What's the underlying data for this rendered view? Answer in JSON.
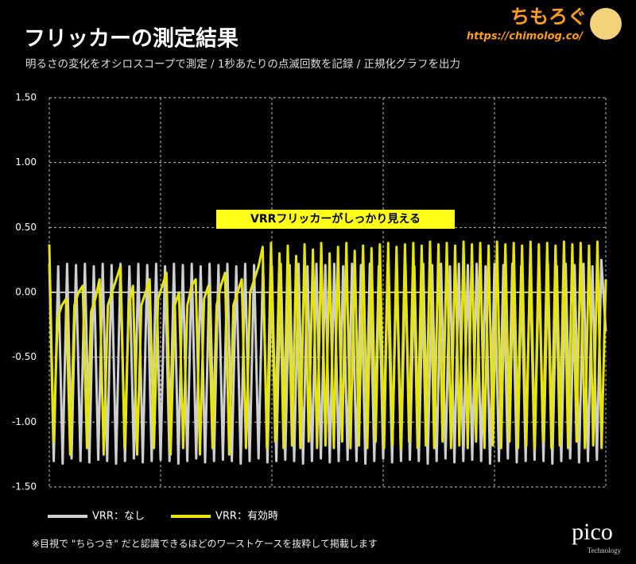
{
  "chart_data": {
    "type": "line",
    "title": "フリッカーの測定結果",
    "subtitle": "明るさの変化をオシロスコープで測定 / 1秒あたりの点滅回数を記録 / 正規化グラフを出力",
    "annotation": "VRRフリッカーがしっかり見える",
    "footnote": "※目視で \"ちらつき\" だと認識できるほどのワーストケースを抜粋して掲載します",
    "ylim": [
      -1.5,
      1.5
    ],
    "yticks": [
      {
        "value": 1.5,
        "label": "1.50"
      },
      {
        "value": 1.0,
        "label": "1.00"
      },
      {
        "value": 0.5,
        "label": "0.50"
      },
      {
        "value": 0,
        "label": "0.00"
      },
      {
        "value": -0.5,
        "label": "-0.50"
      },
      {
        "value": -1.0,
        "label": "-1.00"
      },
      {
        "value": -1.5,
        "label": "-1.50"
      }
    ],
    "grid": true,
    "legend": "bottom-left",
    "series": [
      {
        "name": "VRR：なし",
        "color": "#cfcfcf",
        "values": [
          0.22,
          -1.3,
          0.2,
          -1.32,
          0.22,
          -1.28,
          0.21,
          -1.3,
          0.22,
          -1.31,
          0.2,
          -1.29,
          0.22,
          -1.3,
          0.21,
          -1.32,
          0.22,
          -1.3,
          0.2,
          -1.28,
          0.22,
          -1.31,
          0.21,
          -1.3,
          0.22,
          -1.29,
          0.2,
          -1.3,
          0.22,
          -1.32,
          0.21,
          -1.3,
          0.22,
          -1.28,
          0.2,
          -1.31,
          0.22,
          -1.3,
          0.21,
          -1.29,
          0.22,
          -1.3,
          0.2,
          -1.32,
          0.22,
          -1.3,
          0.21,
          -1.28,
          0.22,
          -1.31,
          0.2,
          -1.3,
          0.22,
          -1.29,
          0.21,
          -1.3,
          0.22,
          -1.32,
          0.2,
          -1.3,
          0.22,
          -1.28,
          0.21,
          -1.31,
          0.22,
          -1.3,
          0.2,
          -1.29,
          0.22,
          -1.3,
          0.21,
          -1.32,
          0.22,
          -1.3,
          0.2,
          -1.28,
          0.22,
          -1.31,
          0.21,
          -1.3,
          0.22,
          -1.29,
          0.2,
          -1.3,
          0.22,
          -1.32,
          0.21,
          -1.3,
          0.22,
          -1.28,
          0.2,
          -1.31,
          0.22,
          -1.3,
          0.21,
          -1.29,
          0.22,
          -1.3,
          0.2,
          -1.32,
          0.22,
          -1.3,
          0.21,
          -1.28,
          0.22,
          -1.31,
          0.2,
          -1.3,
          0.22,
          -1.29,
          0.21,
          -1.3,
          0.22,
          -1.32,
          0.2,
          -1.3,
          0.22,
          -1.28,
          0.21,
          -1.31,
          0.22,
          -1.3,
          0.2,
          -1.29,
          0.25,
          -0.3
        ]
      },
      {
        "name": "VRR：有効時",
        "color": "#e6e600",
        "values": [
          0.37,
          -1.15,
          -0.2,
          -0.1,
          -0.05,
          -1.25,
          -0.1,
          0.0,
          0.05,
          -1.2,
          -0.15,
          -0.05,
          0.1,
          -1.25,
          -0.1,
          0.0,
          0.1,
          0.2,
          -1.2,
          -0.1,
          0.05,
          -1.25,
          -0.1,
          0.0,
          0.1,
          -1.2,
          -0.05,
          0.05,
          0.15,
          -1.25,
          -0.1,
          0.0,
          -1.2,
          -0.1,
          0.05,
          0.1,
          -1.25,
          -0.05,
          0.05,
          -1.2,
          -0.1,
          0.05,
          0.15,
          -1.25,
          -0.1,
          0.0,
          0.1,
          -1.2,
          0.0,
          0.1,
          0.2,
          0.35,
          -1.2,
          0.38,
          -1.15,
          0.3,
          -1.2,
          0.36,
          -1.18,
          0.28,
          -1.2,
          0.37,
          -1.15,
          0.33,
          -1.2,
          0.38,
          -1.18,
          0.3,
          -1.2,
          0.35,
          -1.15,
          0.38,
          -1.2,
          0.32,
          -1.18,
          0.36,
          -1.2,
          0.34,
          -1.15,
          0.37,
          -1.2,
          0.38,
          -1.18,
          0.35,
          -1.2,
          0.37,
          -1.15,
          0.38,
          -1.2,
          0.36,
          -1.18,
          0.39,
          -1.2,
          0.37,
          -1.15,
          0.38,
          -1.2,
          0.36,
          -1.18,
          0.39,
          -1.2,
          0.37,
          -1.15,
          0.38,
          -1.2,
          0.36,
          -1.18,
          0.39,
          -1.2,
          0.37,
          -1.15,
          0.38,
          -1.2,
          0.36,
          -1.18,
          0.39,
          -1.2,
          0.37,
          -1.15,
          0.38,
          -1.2,
          0.36,
          -1.18,
          0.39,
          -1.2,
          0.37,
          -1.15,
          0.38,
          -1.2,
          0.36,
          -1.18,
          0.39,
          -1.2,
          0.1
        ]
      }
    ]
  },
  "branding": {
    "logo": "ちもろぐ",
    "url": "https://chimolog.co/",
    "scope": "pico",
    "scope_sub": "Technology"
  }
}
